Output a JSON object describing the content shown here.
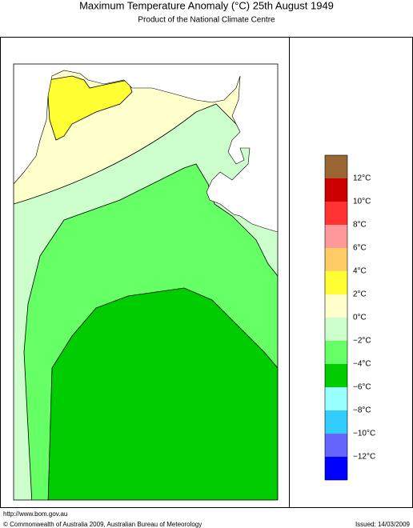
{
  "header": {
    "title": "Maximum Temperature Anomaly (°C)  25th August 1949",
    "subtitle": "Product of the National Climate Centre"
  },
  "legend": {
    "colors": [
      "#996633",
      "#cc0000",
      "#ff3333",
      "#ff9999",
      "#ffcc66",
      "#ffff33",
      "#ffffcc",
      "#ccffcc",
      "#66ff66",
      "#00cc00",
      "#99ffff",
      "#33ccff",
      "#6666ff",
      "#0000ff"
    ],
    "labels": [
      "12°C",
      "10°C",
      "8°C",
      "6°C",
      "4°C",
      "2°C",
      "0°C",
      "−2°C",
      "−4°C",
      "−6°C",
      "−8°C",
      "−10°C",
      "−12°C"
    ]
  },
  "footer": {
    "url": "http://www.bom.gov.au",
    "copyright": "© Commonwealth of Australia 2009, Australian Bureau of Meteorology",
    "issued": "Issued: 14/03/2009"
  }
}
